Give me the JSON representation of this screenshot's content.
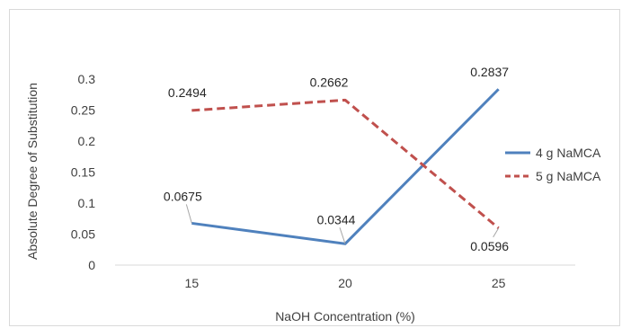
{
  "chart_data": {
    "type": "line",
    "title": "",
    "xlabel": "NaOH Concentration (%)",
    "ylabel": "Absolute Degree of Substitution",
    "categories": [
      "15",
      "20",
      "25"
    ],
    "ylim": [
      0,
      0.3
    ],
    "yticks": [
      "0",
      "0.05",
      "0.1",
      "0.15",
      "0.2",
      "0.25",
      "0.3"
    ],
    "grid": false,
    "legend_position": "right",
    "series": [
      {
        "name": "4 g NaMCA",
        "values": [
          0.0675,
          0.0344,
          0.2837
        ],
        "labels": [
          "0.0675",
          "0.0344",
          "0.2837"
        ],
        "color": "#4f81bd",
        "style": "solid"
      },
      {
        "name": "5 g NaMCA",
        "values": [
          0.2494,
          0.2662,
          0.0596
        ],
        "labels": [
          "0.2494",
          "0.2662",
          "0.0596"
        ],
        "color": "#c0504d",
        "style": "dashed"
      }
    ]
  }
}
